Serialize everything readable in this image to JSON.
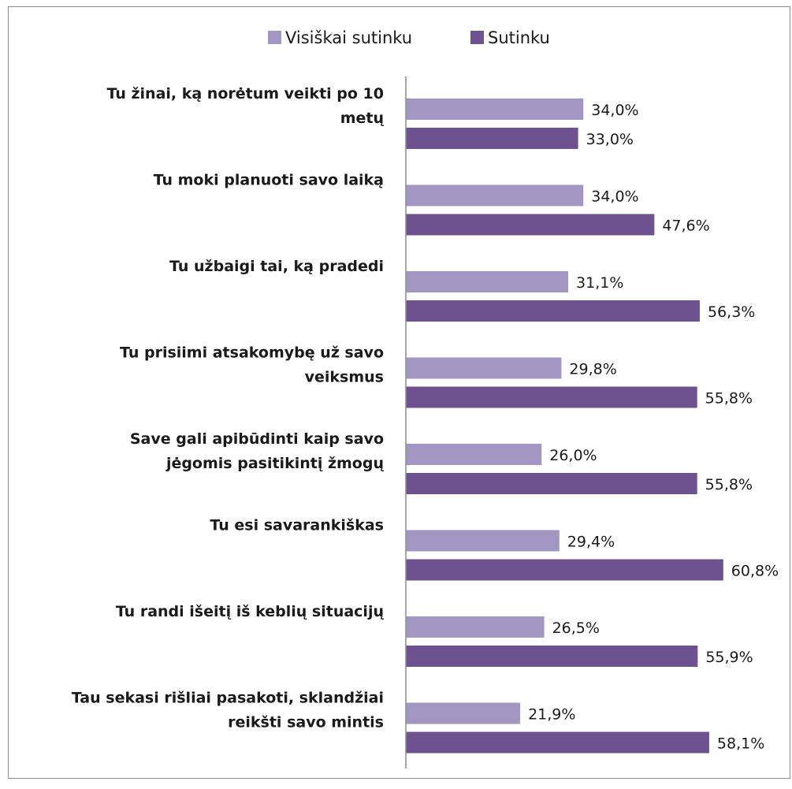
{
  "chart_data": {
    "type": "bar",
    "orientation": "horizontal",
    "legend_position": "top",
    "grid": false,
    "xlim": [
      0,
      61
    ],
    "categories": [
      [
        "Tu žinai, ką norėtum veikti po 10",
        "metų"
      ],
      [
        "Tu moki planuoti savo laiką"
      ],
      [
        "Tu užbaigi tai, ką pradedi"
      ],
      [
        "Tu prisiimi atsakomybę už savo",
        "veiksmus"
      ],
      [
        "Save gali apibūdinti kaip savo",
        "jėgomis pasitikintį žmogų"
      ],
      [
        "Tu esi savarankiškas"
      ],
      [
        "Tu randi išeitį iš keblių situacijų"
      ],
      [
        "Tau sekasi rišliai pasakoti, sklandžiai",
        "reikšti savo mintis"
      ]
    ],
    "series": [
      {
        "name": "Visiškai sutinku",
        "color": "#a496c2",
        "values": [
          34.0,
          34.0,
          31.1,
          29.8,
          26.0,
          29.4,
          26.5,
          21.9
        ],
        "labels": [
          "34,0%",
          "34,0%",
          "31,1%",
          "29,8%",
          "26,0%",
          "29,4%",
          "26,5%",
          "21,9%"
        ]
      },
      {
        "name": "Sutinku",
        "color": "#6e5290",
        "values": [
          33.0,
          47.6,
          56.3,
          55.8,
          55.8,
          60.8,
          55.9,
          58.1
        ],
        "labels": [
          "33,0%",
          "47,6%",
          "56,3%",
          "55,8%",
          "55,8%",
          "60,8%",
          "55,9%",
          "58,1%"
        ]
      }
    ]
  }
}
